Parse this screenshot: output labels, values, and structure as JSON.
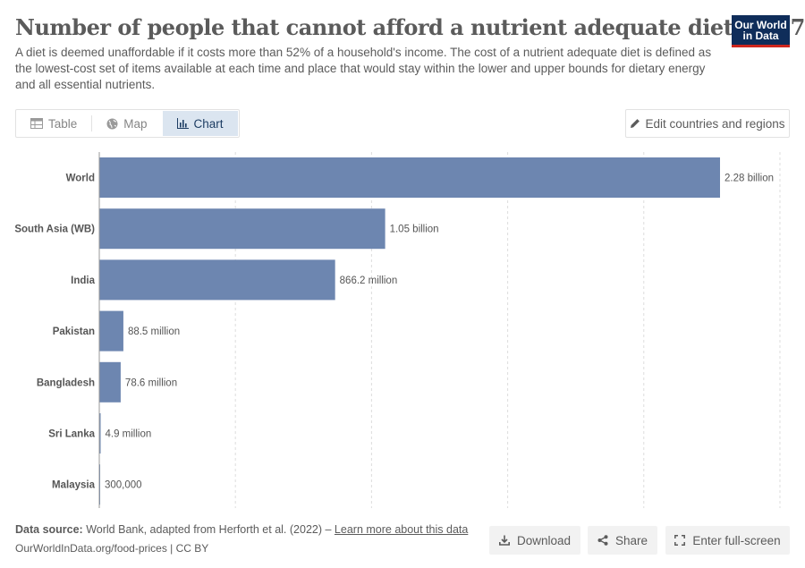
{
  "header": {
    "title": "Number of people that cannot afford a nutrient adequate diet, 2017",
    "subtitle": "A diet is deemed unaffordable if it costs more than 52% of a household's income. The cost of a nutrient adequate diet is defined as the lowest-cost set of items available at each time and place that would stay within the lower and upper bounds for dietary energy and all essential nutrients.",
    "logo_line1": "Our World",
    "logo_line2": "in Data"
  },
  "tabs": [
    {
      "label": "Table",
      "icon": "table-icon",
      "active": false
    },
    {
      "label": "Map",
      "icon": "globe-icon",
      "active": false
    },
    {
      "label": "Chart",
      "icon": "chart-icon",
      "active": true
    }
  ],
  "edit_button_label": "Edit countries and regions",
  "chart_data": {
    "type": "bar",
    "orientation": "horizontal",
    "categories": [
      "World",
      "South Asia (WB)",
      "India",
      "Pakistan",
      "Bangladesh",
      "Sri Lanka",
      "Malaysia"
    ],
    "values": [
      2280000000,
      1050000000,
      866200000,
      88500000,
      78600000,
      4900000,
      300000
    ],
    "value_labels": [
      "2.28 billion",
      "1.05 billion",
      "866.2 million",
      "88.5 million",
      "78.6 million",
      "4.9 million",
      "300,000"
    ],
    "xlim": [
      0,
      2500000000
    ],
    "grid": true,
    "bar_color": "#6d86b0"
  },
  "footer": {
    "source_label": "Data source:",
    "source_text": "World Bank, adapted from Herforth et al. (2022) –",
    "learn_more": "Learn more about this data",
    "url_license": "OurWorldInData.org/food-prices | CC BY",
    "download_label": "Download",
    "share_label": "Share",
    "fullscreen_label": "Enter full-screen"
  }
}
